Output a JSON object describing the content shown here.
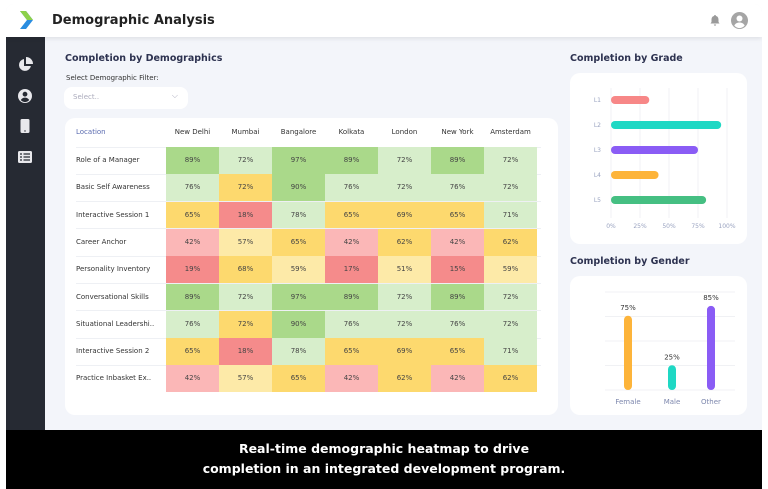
{
  "header": {
    "title": "Demographic Analysis",
    "icons": [
      "bell-icon",
      "user-circle-icon"
    ]
  },
  "sidebar": {
    "items": [
      {
        "icon": "pie-chart-icon"
      },
      {
        "icon": "user-icon"
      },
      {
        "icon": "mobile-icon"
      },
      {
        "icon": "list-icon"
      }
    ]
  },
  "main": {
    "section_title": "Completion by Demographics",
    "filter_label": "Select Demographic Filter:",
    "filter_placeholder": "Select.."
  },
  "colors": {
    "dg": "#aad98a",
    "lg": "#d7eecb",
    "y": "#fdd96e",
    "ly": "#fdeaa8",
    "p": "#fbb7b7",
    "r": "#f58b8b"
  },
  "heatmap": {
    "corner": "Location",
    "columns": [
      "New Delhi",
      "Mumbai",
      "Bangalore",
      "Kolkata",
      "London",
      "New York",
      "Amsterdam"
    ],
    "rows": [
      {
        "label": "Role of a Manager",
        "values": [
          "89%",
          "72%",
          "97%",
          "89%",
          "72%",
          "89%",
          "72%"
        ],
        "shades": [
          "dg",
          "lg",
          "dg",
          "dg",
          "lg",
          "dg",
          "lg"
        ]
      },
      {
        "label": "Basic Self Awareness",
        "values": [
          "76%",
          "72%",
          "90%",
          "76%",
          "72%",
          "76%",
          "72%"
        ],
        "shades": [
          "lg",
          "y",
          "dg",
          "lg",
          "lg",
          "lg",
          "lg"
        ]
      },
      {
        "label": "Interactive Session 1",
        "values": [
          "65%",
          "18%",
          "78%",
          "65%",
          "69%",
          "65%",
          "71%"
        ],
        "shades": [
          "y",
          "r",
          "lg",
          "y",
          "y",
          "y",
          "lg"
        ]
      },
      {
        "label": "Career Anchor",
        "values": [
          "42%",
          "57%",
          "65%",
          "42%",
          "62%",
          "42%",
          "62%"
        ],
        "shades": [
          "p",
          "ly",
          "y",
          "p",
          "y",
          "p",
          "y"
        ]
      },
      {
        "label": "Personality Inventory",
        "values": [
          "19%",
          "68%",
          "59%",
          "17%",
          "51%",
          "15%",
          "59%"
        ],
        "shades": [
          "r",
          "y",
          "ly",
          "r",
          "ly",
          "r",
          "ly"
        ]
      },
      {
        "label": "Conversational Skills",
        "values": [
          "89%",
          "72%",
          "97%",
          "89%",
          "72%",
          "89%",
          "72%"
        ],
        "shades": [
          "dg",
          "lg",
          "dg",
          "dg",
          "lg",
          "dg",
          "lg"
        ]
      },
      {
        "label": "Situational Leadershi..",
        "values": [
          "76%",
          "72%",
          "90%",
          "76%",
          "72%",
          "76%",
          "72%"
        ],
        "shades": [
          "lg",
          "y",
          "dg",
          "lg",
          "lg",
          "lg",
          "lg"
        ]
      },
      {
        "label": "Interactive Session 2",
        "values": [
          "65%",
          "18%",
          "78%",
          "65%",
          "69%",
          "65%",
          "71%"
        ],
        "shades": [
          "y",
          "r",
          "lg",
          "y",
          "y",
          "y",
          "lg"
        ]
      },
      {
        "label": "Practice Inbasket Ex..",
        "values": [
          "42%",
          "57%",
          "65%",
          "42%",
          "62%",
          "42%",
          "62%"
        ],
        "shades": [
          "p",
          "ly",
          "y",
          "p",
          "y",
          "p",
          "y"
        ]
      }
    ]
  },
  "chart_data": [
    {
      "type": "bar",
      "orientation": "horizontal",
      "title": "Completion by Grade",
      "categories": [
        "L1",
        "L2",
        "L3",
        "L4",
        "L5"
      ],
      "values": [
        33,
        95,
        75,
        41,
        82
      ],
      "colors": [
        "#f78787",
        "#1fd8c4",
        "#8a5cf5",
        "#fdb43a",
        "#45bf82"
      ],
      "xlim": [
        0,
        100
      ],
      "xticks": [
        "0%",
        "25%",
        "50%",
        "75%",
        "100%"
      ],
      "grid": true
    },
    {
      "type": "bar",
      "orientation": "vertical",
      "title": "Completion by Gender",
      "categories": [
        "Female",
        "Male",
        "Other"
      ],
      "values": [
        75,
        25,
        85
      ],
      "labels": [
        "75%",
        "25%",
        "85%"
      ],
      "colors": [
        "#fdb43a",
        "#1fd8c4",
        "#8a5cf5"
      ],
      "ylim": [
        0,
        100
      ],
      "grid": true
    }
  ],
  "caption": {
    "line1": "Real-time demographic heatmap to drive",
    "line2": "completion in an integrated development program."
  }
}
